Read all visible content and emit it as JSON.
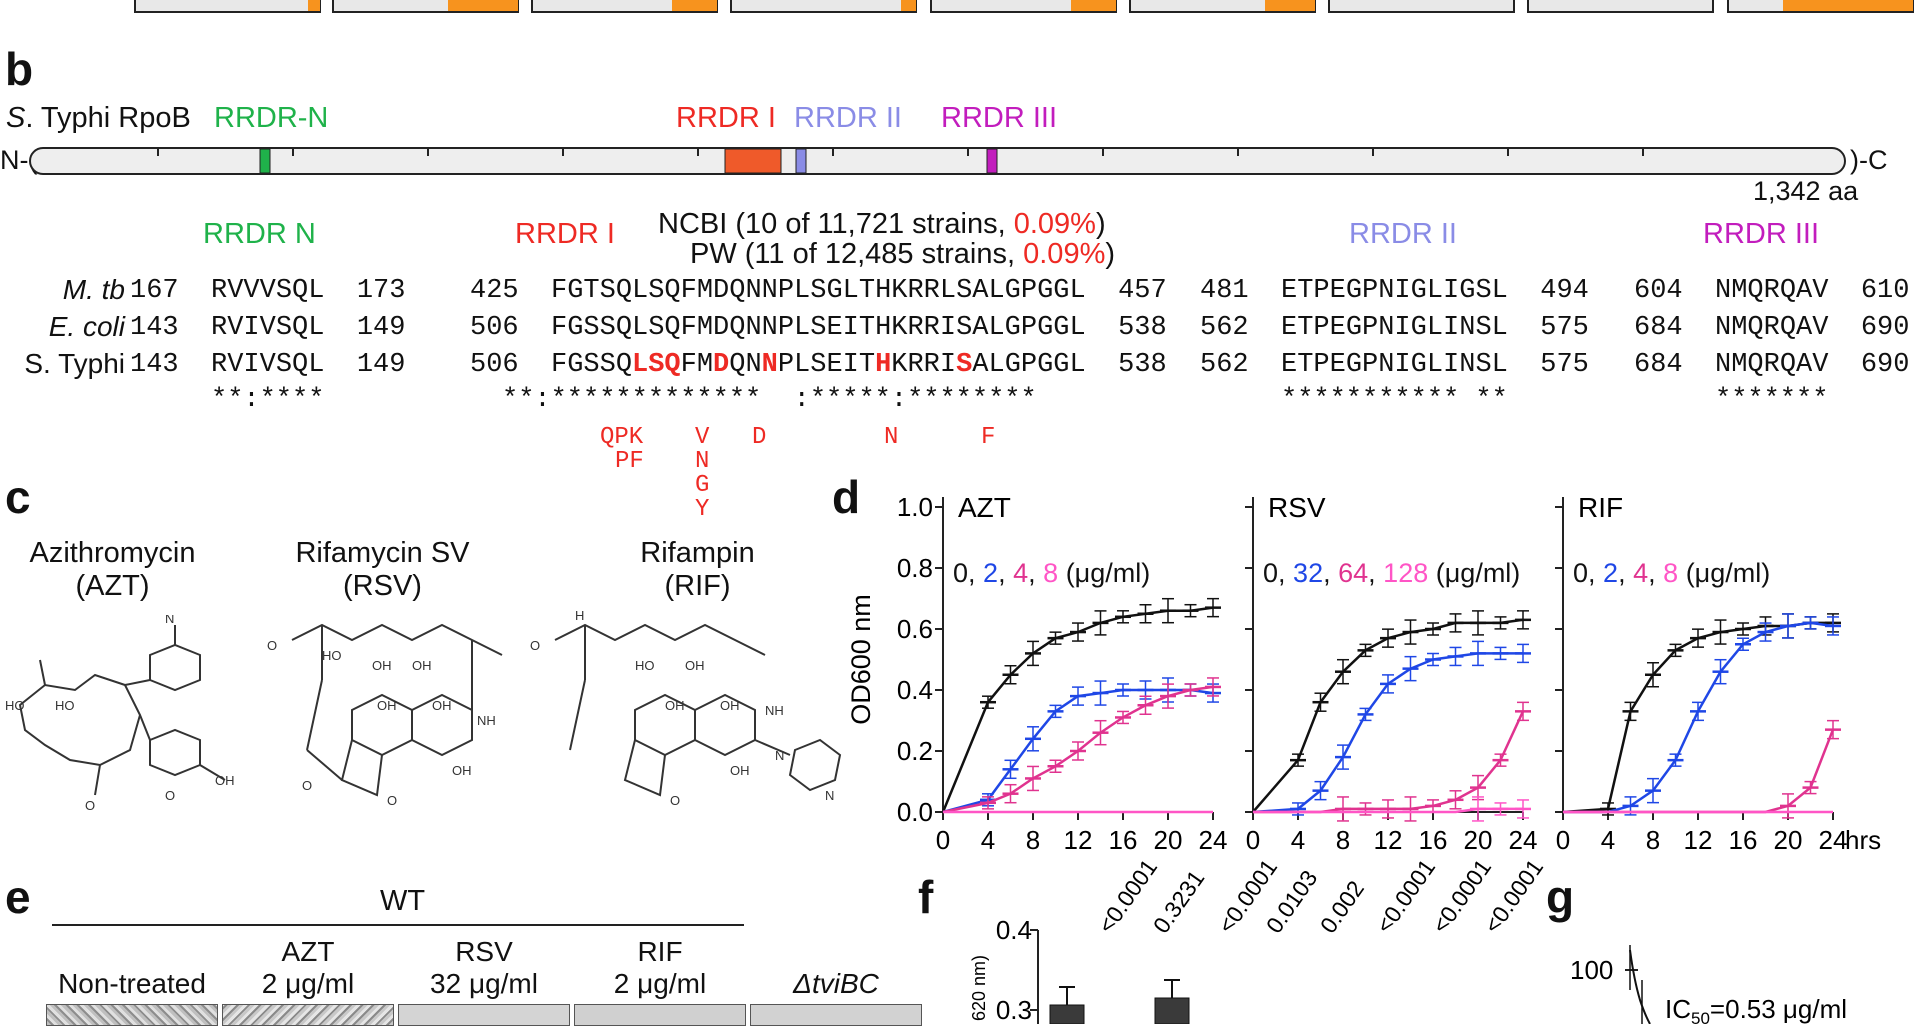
{
  "panel_letters": {
    "b": "b",
    "c": "c",
    "d": "d",
    "e": "e",
    "f": "f",
    "g": "g"
  },
  "panel_b": {
    "organism_prefix": "S",
    "organism_suffix": ". Typhi RpoB",
    "regions": [
      {
        "name": "RRDR-N",
        "color": "#1fb24a"
      },
      {
        "name": "RRDR I",
        "color": "#ee2a24"
      },
      {
        "name": "RRDR II",
        "color": "#8a8ce6"
      },
      {
        "name": "RRDR III",
        "color": "#c21dbd"
      }
    ],
    "n_term": "N-(",
    "c_term": ")-C",
    "length": "1,342 aa",
    "domain_headers": [
      {
        "name": "RRDR N",
        "color": "#1fb24a"
      },
      {
        "name": "RRDR I",
        "color": "#ee2a24"
      },
      {
        "name": "RRDR II",
        "color": "#8a8ce6"
      },
      {
        "name": "RRDR III",
        "color": "#c21dbd"
      }
    ],
    "ncbi_prefix": "NCBI (10 of 11,721 strains, ",
    "ncbi_pct": "0.09%",
    "ncbi_suffix": ")",
    "pw_prefix": "PW (11 of 12,485 strains, ",
    "pw_pct": "0.09%",
    "pw_suffix": ")",
    "rows": [
      {
        "organism": "M. tb",
        "n": "167  RVVVSQL  173",
        "i": "425  FGTSQLSQFMDQNNPLSGLTHKRRLSALGPGGL  457",
        "ii": "481  ETPEGPNIGLIGSL  494",
        "iii": "604  NMQRQAV  610"
      },
      {
        "organism": "E. coli",
        "n": "143  RVIVSQL  149",
        "i": "506  FGSSQLSQFMDQNNPLSEITHKRRISALGPGGL  538",
        "ii": "562  ETPEGPNIGLINSL  575",
        "iii": "684  NMQRQAV  690"
      },
      {
        "organism": "S. Typhi",
        "n": "143  RVIVSQL  149",
        "i_prefix": "506  FGSSQ",
        "i_seq": [
          {
            "t": "LSQ",
            "hl": true
          },
          {
            "t": "FM",
            "hl": false
          },
          {
            "t": "D",
            "hl": true
          },
          {
            "t": "QN",
            "hl": false
          },
          {
            "t": "N",
            "hl": true
          },
          {
            "t": "PLSEIT",
            "hl": false
          },
          {
            "t": "H",
            "hl": true
          },
          {
            "t": "KRRI",
            "hl": false
          },
          {
            "t": "S",
            "hl": true
          },
          {
            "t": "ALGPGGL",
            "hl": false
          }
        ],
        "i_suffix": "  538",
        "ii": "562  ETPEGPNIGLINSL  575",
        "iii": "684  NMQRQAV  690"
      }
    ],
    "conservation": {
      "n": "**:****",
      "i": "**:*************  :*****:********",
      "ii": "*********** **",
      "iii": "*******"
    },
    "mutations": [
      "QPK",
      "PF",
      "V",
      "N",
      "G",
      "Y",
      "D",
      "N",
      "F"
    ]
  },
  "panel_c": {
    "drugs": [
      {
        "name": "Azithromycin",
        "abbr": "(AZT)"
      },
      {
        "name": "Rifamycin SV",
        "abbr": "(RSV)"
      },
      {
        "name": "Rifampin",
        "abbr": "(RIF)"
      }
    ]
  },
  "chart_data": {
    "type": "line",
    "ylabel": "OD600 nm",
    "ylim": [
      0.0,
      1.0
    ],
    "yticks": [
      "0.0",
      "0.2",
      "0.4",
      "0.6",
      "0.8",
      "1.0"
    ],
    "xticks": [
      "0",
      "4",
      "8",
      "12",
      "16",
      "20",
      "24"
    ],
    "x_unit": "hrs",
    "x": [
      4,
      6,
      8,
      10,
      12,
      14,
      16,
      18,
      20,
      22,
      24
    ],
    "panels": [
      {
        "title": "AZT",
        "concentrations": [
          "0",
          "2",
          "4",
          "8"
        ],
        "unit": "(μg/ml)",
        "series": [
          {
            "name": "0",
            "color": "#111111",
            "values": [
              0.36,
              0.45,
              0.52,
              0.57,
              0.59,
              0.62,
              0.64,
              0.65,
              0.66,
              0.66,
              0.67
            ]
          },
          {
            "name": "2",
            "color": "#1f47e6",
            "values": [
              0.04,
              0.14,
              0.24,
              0.33,
              0.38,
              0.39,
              0.4,
              0.4,
              0.4,
              0.4,
              0.39
            ]
          },
          {
            "name": "4",
            "color": "#e0338f",
            "values": [
              0.03,
              0.06,
              0.11,
              0.15,
              0.2,
              0.26,
              0.31,
              0.35,
              0.38,
              0.4,
              0.41
            ]
          },
          {
            "name": "8",
            "color": "#ff55c6",
            "values": [
              0.0,
              0.0,
              0.0,
              0.0,
              0.0,
              0.0,
              0.0,
              0.0,
              0.0,
              0.0,
              0.0
            ]
          }
        ]
      },
      {
        "title": "RSV",
        "concentrations": [
          "0",
          "32",
          "64",
          "128"
        ],
        "unit": "(μg/ml)",
        "series": [
          {
            "name": "0",
            "color": "#111111",
            "values": [
              0.17,
              0.36,
              0.46,
              0.53,
              0.57,
              0.59,
              0.6,
              0.62,
              0.62,
              0.62,
              0.63
            ]
          },
          {
            "name": "32",
            "color": "#1f47e6",
            "values": [
              0.01,
              0.07,
              0.18,
              0.32,
              0.42,
              0.47,
              0.5,
              0.51,
              0.52,
              0.52,
              0.52
            ]
          },
          {
            "name": "64",
            "color": "#e0338f",
            "values": [
              0.0,
              0.0,
              0.01,
              0.01,
              0.01,
              0.01,
              0.02,
              0.04,
              0.08,
              0.17,
              0.33
            ]
          },
          {
            "name": "128",
            "color": "#ff55c6",
            "values": [
              0.0,
              0.0,
              0.0,
              0.0,
              0.0,
              0.0,
              0.0,
              0.0,
              0.01,
              0.01,
              0.01
            ]
          }
        ]
      },
      {
        "title": "RIF",
        "concentrations": [
          "0",
          "2",
          "4",
          "8"
        ],
        "unit": "(μg/ml)",
        "series": [
          {
            "name": "0",
            "color": "#111111",
            "values": [
              0.01,
              0.33,
              0.45,
              0.53,
              0.57,
              0.59,
              0.6,
              0.61,
              0.61,
              0.62,
              0.62
            ]
          },
          {
            "name": "2",
            "color": "#1f47e6",
            "values": [
              0.0,
              0.02,
              0.07,
              0.17,
              0.33,
              0.46,
              0.55,
              0.59,
              0.61,
              0.62,
              0.61
            ]
          },
          {
            "name": "4",
            "color": "#e0338f",
            "values": [
              0.0,
              0.0,
              0.0,
              0.0,
              0.0,
              0.0,
              0.0,
              0.0,
              0.02,
              0.08,
              0.27
            ]
          },
          {
            "name": "8",
            "color": "#ff55c6",
            "values": [
              0.0,
              0.0,
              0.0,
              0.0,
              0.0,
              0.0,
              0.0,
              0.0,
              0.0,
              0.0,
              0.0
            ]
          }
        ]
      }
    ]
  },
  "panel_e": {
    "group": "WT",
    "columns": [
      {
        "line1": "",
        "line2": "Non-treated"
      },
      {
        "line1": "AZT",
        "line2": "2 μg/ml"
      },
      {
        "line1": "RSV",
        "line2": "32 μg/ml"
      },
      {
        "line1": "RIF",
        "line2": "2 μg/ml"
      },
      {
        "line1": "",
        "line2": "ΔtviBC"
      }
    ]
  },
  "panel_f": {
    "yticks": [
      "0.4",
      "0.3"
    ],
    "ylabel": "620 nm)",
    "pvalues": [
      "<0.0001",
      "0.3231",
      "<0.0001",
      "0.0103",
      "0.002",
      "<0.0001",
      "<0.0001",
      "<0.0001"
    ]
  },
  "panel_g": {
    "ytick": "100",
    "ic_label": "IC",
    "ic_sub": "50",
    "ic_value": "=0.53 μg/ml"
  }
}
